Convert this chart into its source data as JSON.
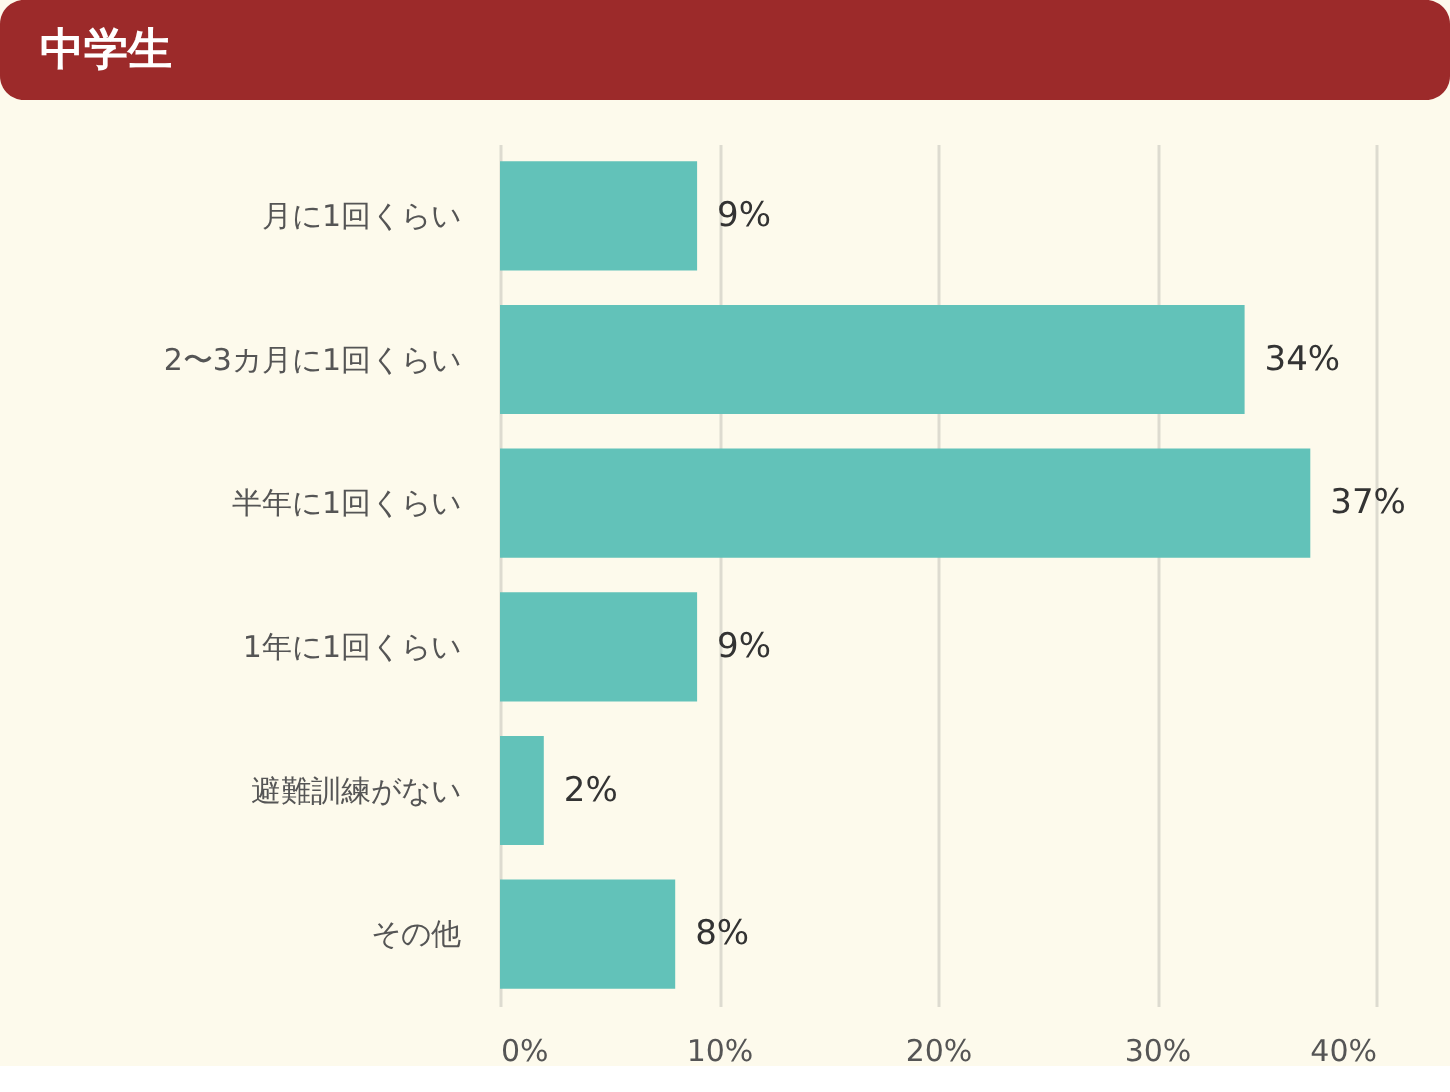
{
  "chart_data": {
    "type": "bar",
    "orientation": "horizontal",
    "title": "中学生",
    "categories": [
      "月に1回くらい",
      "2〜3カ月に1回くらい",
      "半年に1回くらい",
      "1年に1回くらい",
      "避難訓練がない",
      "その他"
    ],
    "values": [
      9,
      34,
      37,
      9,
      2,
      8
    ],
    "value_labels": [
      "9%",
      "34%",
      "37%",
      "9%",
      "2%",
      "8%"
    ],
    "color": "#62c2b9",
    "xlim": [
      0,
      40
    ],
    "xticks": [
      {
        "value": 0,
        "label": "0%"
      },
      {
        "value": 10,
        "label": "10%"
      },
      {
        "value": 20,
        "label": "20%"
      },
      {
        "value": 30,
        "label": "30%"
      },
      {
        "value": 40,
        "label": "40%"
      }
    ],
    "grid": "x"
  }
}
